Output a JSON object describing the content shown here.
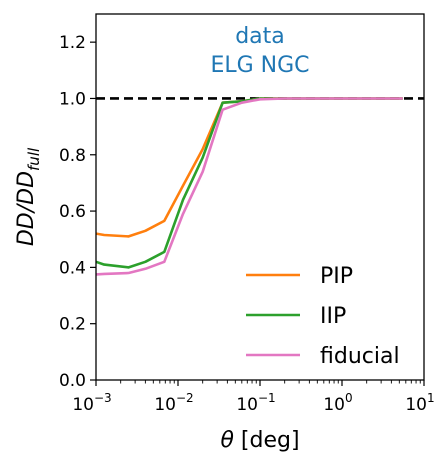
{
  "chart_data": {
    "type": "line",
    "xlabel": "θ [deg]",
    "ylabel_main": "DD/DD",
    "ylabel_sub": "full",
    "xscale": "log",
    "xlim": [
      0.001,
      10
    ],
    "ylim": [
      0.0,
      1.3
    ],
    "x_ticks": [
      {
        "value": 0.001,
        "base": "10",
        "exp": "−3"
      },
      {
        "value": 0.01,
        "base": "10",
        "exp": "−2"
      },
      {
        "value": 0.1,
        "base": "10",
        "exp": "−1"
      },
      {
        "value": 1,
        "base": "10",
        "exp": "0"
      },
      {
        "value": 10,
        "base": "10",
        "exp": "1"
      }
    ],
    "y_ticks": [
      {
        "value": 0.0,
        "label": "0.0"
      },
      {
        "value": 0.2,
        "label": "0.2"
      },
      {
        "value": 0.4,
        "label": "0.4"
      },
      {
        "value": 0.6,
        "label": "0.6"
      },
      {
        "value": 0.8,
        "label": "0.8"
      },
      {
        "value": 1.0,
        "label": "1.0"
      },
      {
        "value": 1.2,
        "label": "1.2"
      }
    ],
    "annotation": [
      "data",
      "ELG NGC"
    ],
    "annotation_color": "#1f77b4",
    "reference_line": {
      "y": 1.0,
      "style": "dashed",
      "color": "#000000"
    },
    "legend_position": "lower-right",
    "x": [
      0.001,
      0.00126,
      0.0025,
      0.004,
      0.0068,
      0.0115,
      0.02,
      0.035,
      0.06,
      0.1,
      0.2,
      0.5,
      1,
      2,
      3,
      5.5
    ],
    "series": [
      {
        "name": "PIP",
        "color": "#ff7f0e",
        "values": [
          0.52,
          0.515,
          0.51,
          0.53,
          0.565,
          0.69,
          0.82,
          0.985,
          0.99,
          1.0,
          1.0,
          1.0,
          1.0,
          1.0,
          1.0,
          1.0
        ]
      },
      {
        "name": "IIP",
        "color": "#2ca02c",
        "values": [
          0.42,
          0.41,
          0.4,
          0.42,
          0.455,
          0.64,
          0.79,
          0.985,
          0.99,
          1.0,
          1.0,
          1.0,
          1.0,
          1.0,
          1.0,
          1.0
        ]
      },
      {
        "name": "fiducial",
        "color": "#e377c2",
        "values": [
          0.375,
          0.377,
          0.38,
          0.395,
          0.42,
          0.59,
          0.74,
          0.96,
          0.985,
          0.997,
          1.0,
          1.0,
          1.0,
          1.0,
          1.0,
          1.0
        ]
      }
    ]
  }
}
